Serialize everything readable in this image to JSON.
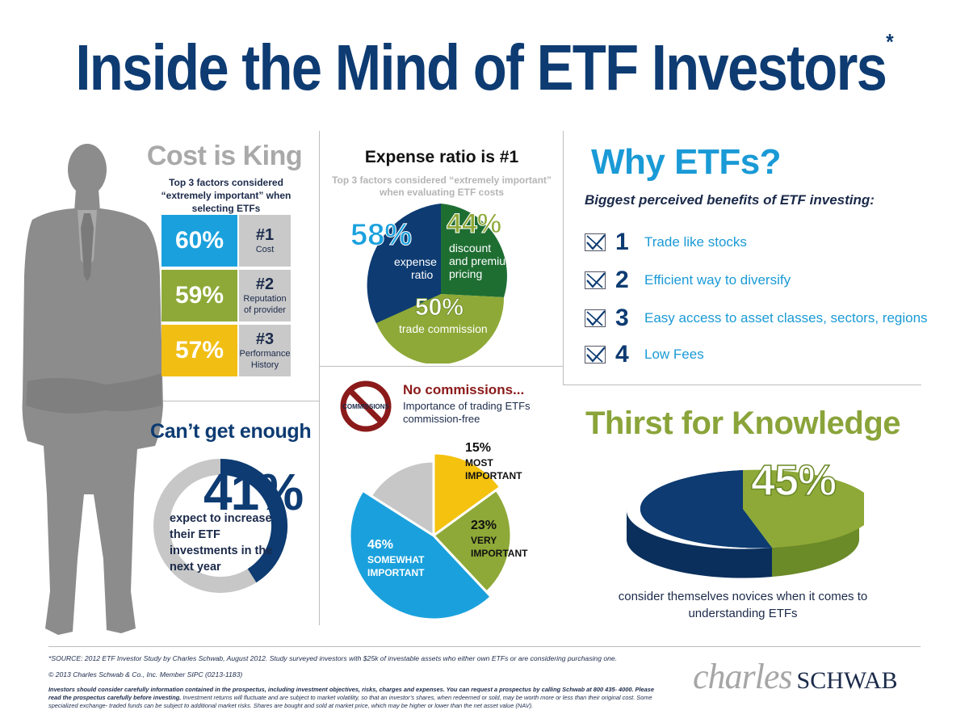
{
  "title": {
    "text": "Inside the Mind of ETF Investors",
    "asterisk": "*"
  },
  "cost_is_king": {
    "title": "Cost is King",
    "subtitle": "Top 3 factors considered “extremely important” when selecting ETFs",
    "factors": [
      {
        "pct": "60%",
        "rank": "#1",
        "name": "Cost",
        "color": "#1aa1dd"
      },
      {
        "pct": "59%",
        "rank": "#2",
        "name": "Reputation of provider",
        "color": "#8ea937"
      },
      {
        "pct": "57%",
        "rank": "#3",
        "name": "Performance History",
        "color": "#f1be14"
      }
    ]
  },
  "cant_get_enough": {
    "title": "Can’t get enough",
    "pct": "41%",
    "text": "expect to increase their ETF investments in the next year",
    "ring_fraction": 0.41
  },
  "expense_ratio": {
    "title": "Expense ratio is #1",
    "subtitle": "Top 3 factors considered “extremely important” when evaluating ETF costs",
    "slices": [
      {
        "pct": "58%",
        "label_line1": "expense",
        "label_line2": "ratio",
        "color": "#0d3b72"
      },
      {
        "pct": "44%",
        "label_line1": "discount",
        "label_line2": "and premium",
        "label_line3": "pricing",
        "color": "#1e6e32"
      },
      {
        "pct": "50%",
        "label_line1": "trade commission",
        "color": "#8ea937"
      }
    ]
  },
  "no_commissions": {
    "title": "No commissions...",
    "subtitle": "Importance of trading ETFs commission-free",
    "sign_text": "COMMISSIONS",
    "slices": [
      {
        "pct": "15%",
        "label_line1": "MOST",
        "label_line2": "IMPORTANT",
        "value": 15,
        "color": "#f4c20f"
      },
      {
        "pct": "23%",
        "label_line1": "VERY",
        "label_line2": "IMPORTANT",
        "value": 23,
        "color": "#8ea937"
      },
      {
        "pct": "46%",
        "label_line1": "SOMEWHAT",
        "label_line2": "IMPORTANT",
        "value": 46,
        "color": "#1aa1dd"
      },
      {
        "value": 16,
        "color": "#c7c7c7"
      }
    ]
  },
  "why_etfs": {
    "title": "Why ETFs?",
    "subtitle": "Biggest perceived benefits of ETF investing:",
    "benefits": [
      {
        "num": "1",
        "text": "Trade like stocks"
      },
      {
        "num": "2",
        "text": "Efficient way to diversify"
      },
      {
        "num": "3",
        "text": "Easy access to asset classes, sectors, regions"
      },
      {
        "num": "4",
        "text": "Low Fees"
      }
    ]
  },
  "thirst": {
    "title": "Thirst for Knowledge",
    "pct": "45%",
    "text": "consider themselves novices when it comes to understanding ETFs",
    "value": 45
  },
  "footer": {
    "source": "*SOURCE: 2012 ETF Investor Study by Charles Schwab, August 2012. Study surveyed investors with $25k of investable assets who either own ETFs or are considering purchasing one.",
    "copyright": "© 2013 Charles Schwab & Co., Inc. Member SIPC (0213-1183)",
    "disclaimer_bold": "Investors should consider carefully information contained in the prospectus, including investment objectives, risks, charges and expenses. You can request a prospectus by calling Schwab at 800 435- 4000. Please read the prospectus carefully before investing.",
    "disclaimer_rest": " Investment returns will fluctuate and are subject to market volatility, so that an investor’s shares, when redeemed or sold, may be worth more or less than their original cost. Some specialized exchange- traded funds can be subject to additional market risks. Shares are bought and sold at market price, which may be higher or lower than the net asset value (NAV)."
  },
  "logo": {
    "part1": "charles",
    "part2": "SCHWAB"
  }
}
